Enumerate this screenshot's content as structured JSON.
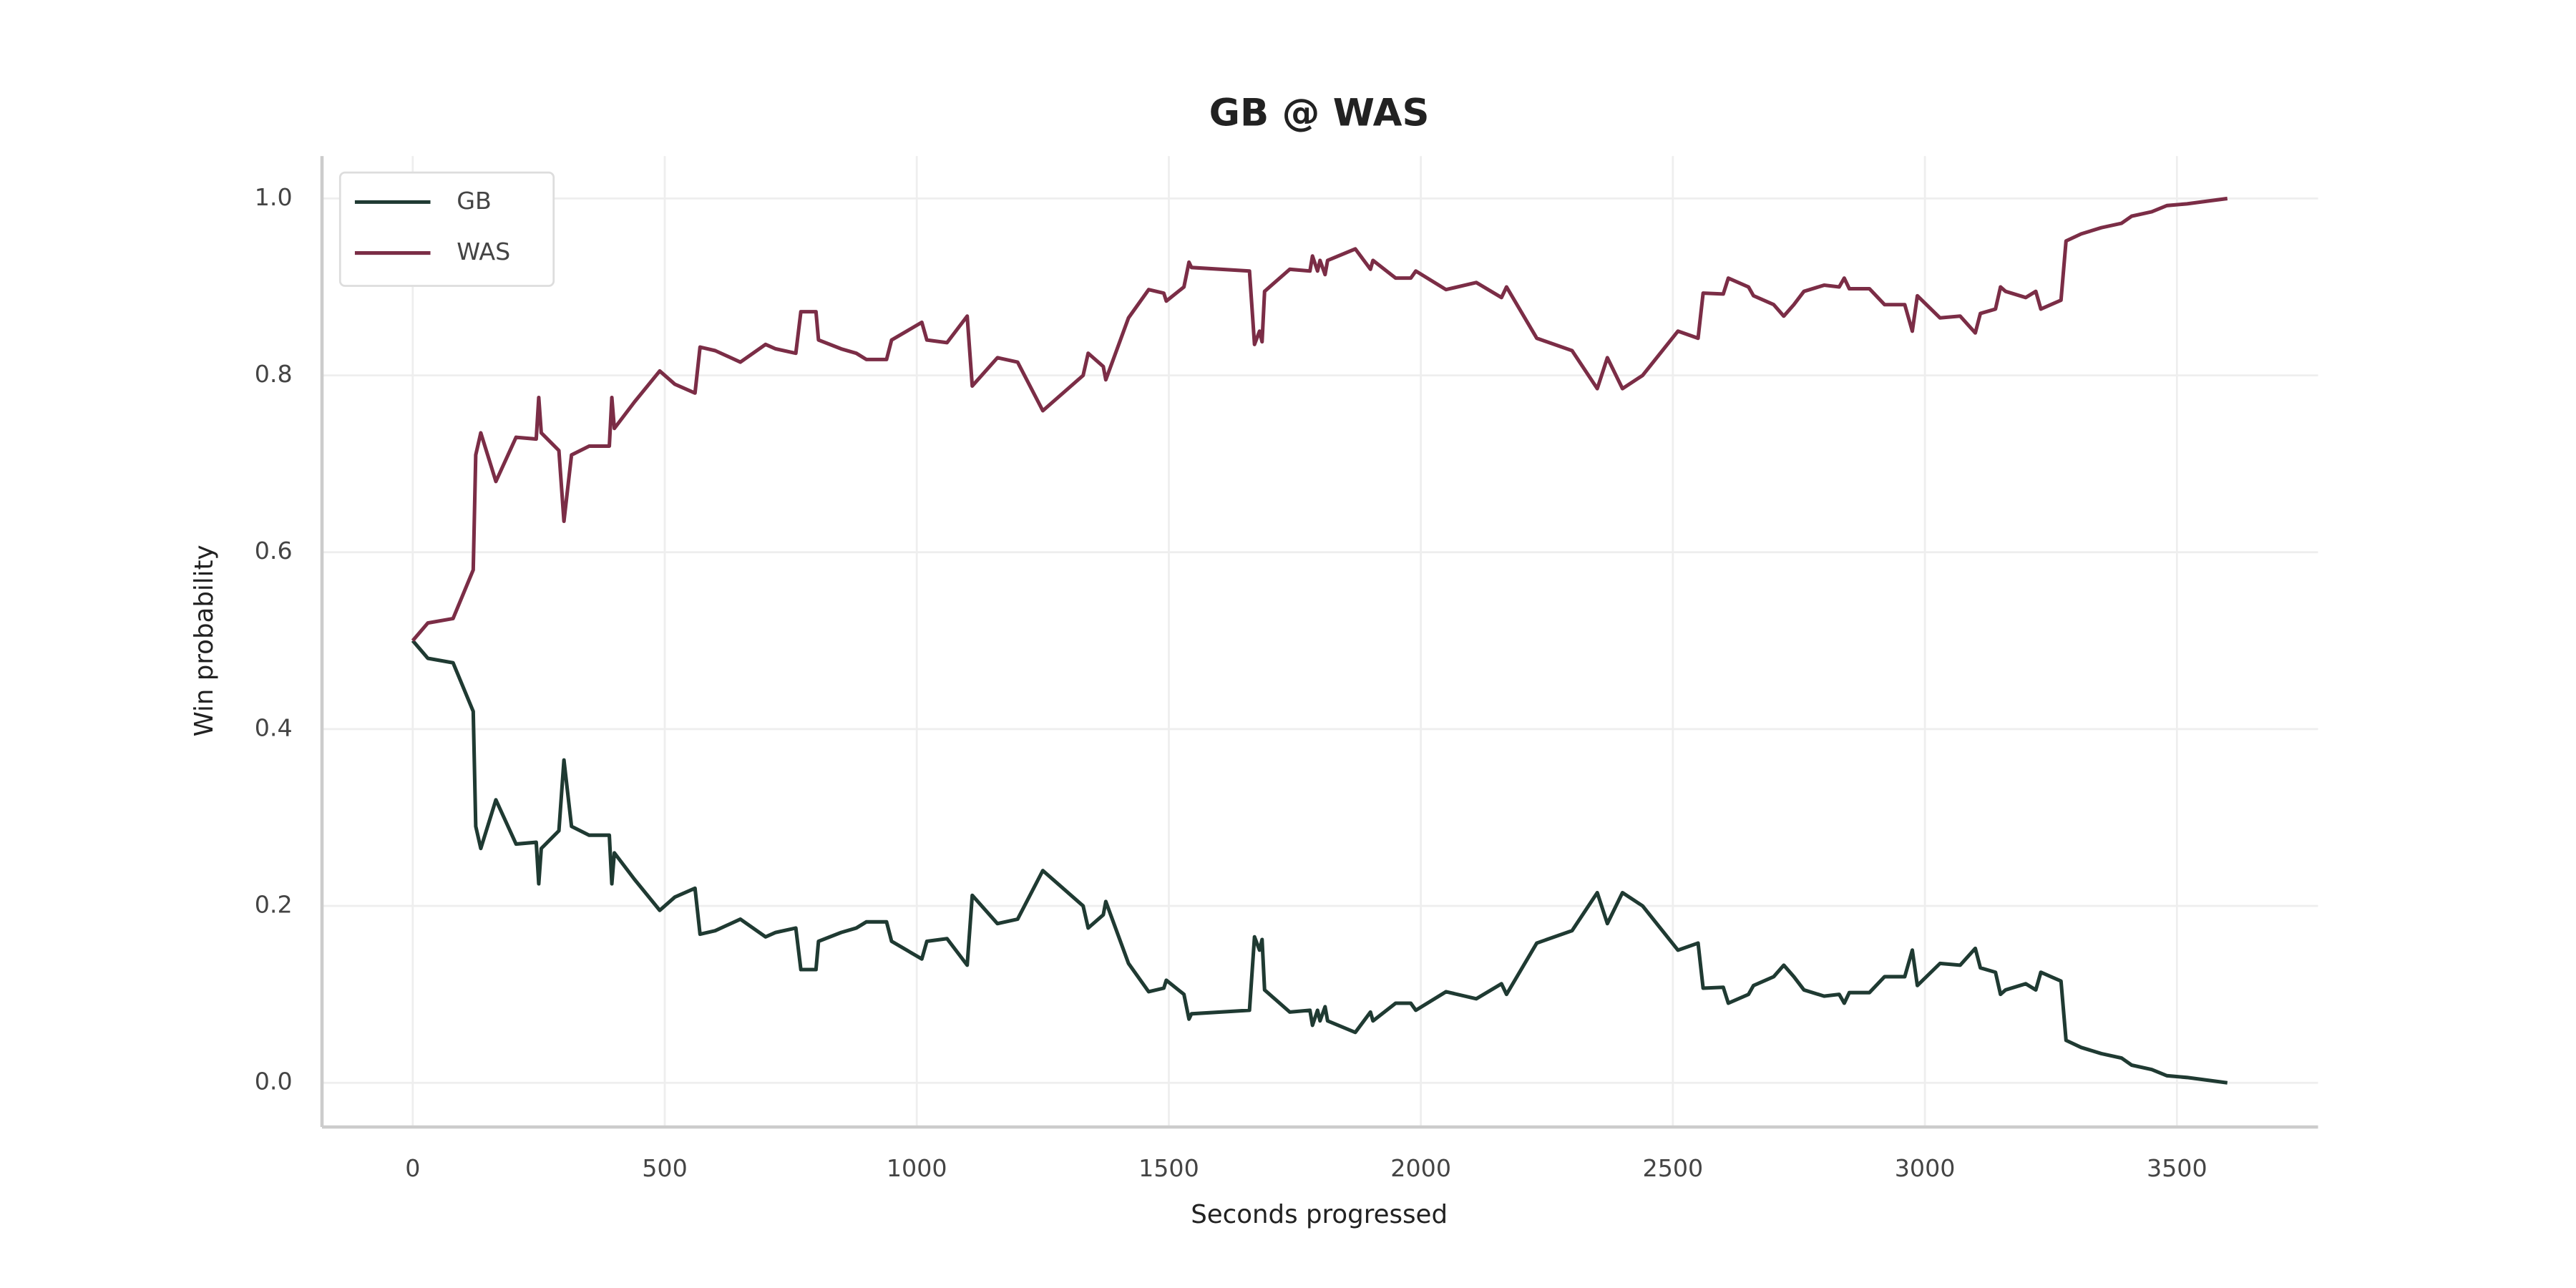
{
  "chart_data": {
    "type": "line",
    "title": "GB @ WAS",
    "x_label": "Seconds progressed",
    "y_label": "Win probability",
    "x": [
      0,
      30,
      80,
      120,
      125,
      135,
      165,
      205,
      245,
      250,
      255,
      290,
      300,
      315,
      350,
      390,
      395,
      400,
      440,
      490,
      520,
      560,
      570,
      600,
      650,
      700,
      720,
      760,
      770,
      800,
      805,
      850,
      880,
      900,
      940,
      950,
      1010,
      1020,
      1060,
      1100,
      1110,
      1160,
      1200,
      1250,
      1330,
      1340,
      1370,
      1375,
      1420,
      1460,
      1490,
      1495,
      1530,
      1540,
      1545,
      1660,
      1670,
      1680,
      1685,
      1690,
      1740,
      1780,
      1785,
      1795,
      1800,
      1810,
      1815,
      1870,
      1900,
      1905,
      1950,
      1980,
      1990,
      2050,
      2110,
      2160,
      2170,
      2230,
      2300,
      2350,
      2370,
      2400,
      2440,
      2510,
      2550,
      2560,
      2600,
      2610,
      2650,
      2660,
      2700,
      2720,
      2740,
      2760,
      2800,
      2830,
      2840,
      2850,
      2890,
      2920,
      2960,
      2975,
      2985,
      3030,
      3070,
      3100,
      3110,
      3140,
      3150,
      3160,
      3200,
      3220,
      3230,
      3250,
      3270,
      3280,
      3310,
      3350,
      3390,
      3410,
      3450,
      3480,
      3520,
      3560,
      3600
    ],
    "series": [
      {
        "name": "GB",
        "color": "#1f3a32",
        "values": [
          0.5,
          0.48,
          0.475,
          0.42,
          0.29,
          0.265,
          0.32,
          0.27,
          0.272,
          0.225,
          0.265,
          0.285,
          0.365,
          0.29,
          0.28,
          0.28,
          0.225,
          0.26,
          0.23,
          0.195,
          0.21,
          0.22,
          0.168,
          0.172,
          0.185,
          0.165,
          0.17,
          0.175,
          0.128,
          0.128,
          0.16,
          0.17,
          0.175,
          0.182,
          0.182,
          0.16,
          0.14,
          0.16,
          0.163,
          0.133,
          0.212,
          0.18,
          0.185,
          0.24,
          0.2,
          0.175,
          0.19,
          0.205,
          0.135,
          0.103,
          0.107,
          0.116,
          0.1,
          0.072,
          0.078,
          0.082,
          0.165,
          0.15,
          0.162,
          0.105,
          0.08,
          0.082,
          0.065,
          0.082,
          0.07,
          0.086,
          0.07,
          0.057,
          0.08,
          0.07,
          0.09,
          0.09,
          0.082,
          0.103,
          0.095,
          0.112,
          0.1,
          0.158,
          0.172,
          0.215,
          0.18,
          0.215,
          0.2,
          0.15,
          0.158,
          0.107,
          0.108,
          0.09,
          0.1,
          0.11,
          0.12,
          0.133,
          0.12,
          0.105,
          0.098,
          0.1,
          0.09,
          0.102,
          0.102,
          0.12,
          0.12,
          0.15,
          0.11,
          0.135,
          0.133,
          0.152,
          0.13,
          0.125,
          0.1,
          0.105,
          0.112,
          0.105,
          0.125,
          0.12,
          0.115,
          0.048,
          0.04,
          0.033,
          0.028,
          0.02,
          0.015,
          0.008,
          0.006,
          0.003,
          0.0
        ]
      },
      {
        "name": "WAS",
        "color": "#7b2d46",
        "values": [
          0.5,
          0.52,
          0.525,
          0.58,
          0.71,
          0.735,
          0.68,
          0.73,
          0.728,
          0.775,
          0.735,
          0.715,
          0.635,
          0.71,
          0.72,
          0.72,
          0.775,
          0.74,
          0.77,
          0.805,
          0.79,
          0.78,
          0.832,
          0.828,
          0.815,
          0.835,
          0.83,
          0.825,
          0.872,
          0.872,
          0.84,
          0.83,
          0.825,
          0.818,
          0.818,
          0.84,
          0.86,
          0.84,
          0.837,
          0.867,
          0.788,
          0.82,
          0.815,
          0.76,
          0.8,
          0.825,
          0.81,
          0.795,
          0.865,
          0.897,
          0.893,
          0.884,
          0.9,
          0.928,
          0.922,
          0.918,
          0.835,
          0.85,
          0.838,
          0.895,
          0.92,
          0.918,
          0.935,
          0.918,
          0.93,
          0.914,
          0.93,
          0.943,
          0.92,
          0.93,
          0.91,
          0.91,
          0.918,
          0.897,
          0.905,
          0.888,
          0.9,
          0.842,
          0.828,
          0.785,
          0.82,
          0.785,
          0.8,
          0.85,
          0.842,
          0.893,
          0.892,
          0.91,
          0.9,
          0.89,
          0.88,
          0.867,
          0.88,
          0.895,
          0.902,
          0.9,
          0.91,
          0.898,
          0.898,
          0.88,
          0.88,
          0.85,
          0.89,
          0.865,
          0.867,
          0.848,
          0.87,
          0.875,
          0.9,
          0.895,
          0.888,
          0.895,
          0.875,
          0.88,
          0.885,
          0.952,
          0.96,
          0.967,
          0.972,
          0.98,
          0.985,
          0.992,
          0.994,
          0.997,
          1.0
        ]
      }
    ],
    "xlim": [
      -180,
      3780
    ],
    "ylim": [
      -0.05,
      1.048
    ],
    "xticks": [
      0,
      500,
      1000,
      1500,
      2000,
      2500,
      3000,
      3500
    ],
    "yticks": [
      {
        "value": 0,
        "label": "0.0"
      },
      0.2,
      0.4,
      0.6,
      0.8,
      {
        "value": 1,
        "label": "1.0"
      }
    ],
    "grid": true,
    "legend": "upper-left"
  }
}
